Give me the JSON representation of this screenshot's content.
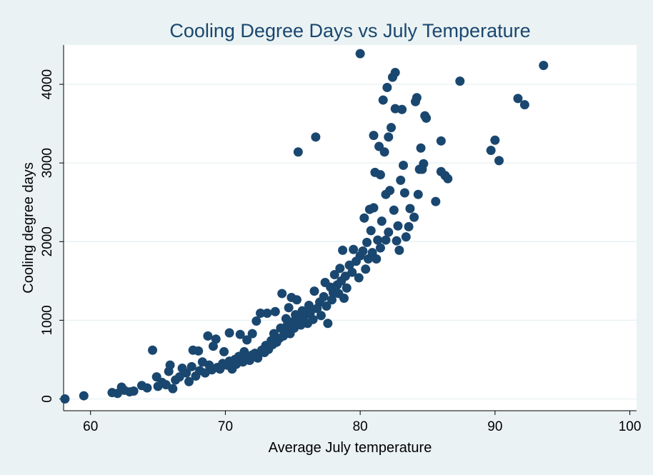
{
  "colors": {
    "background": "#eaf2f3",
    "plot_bg": "#ffffff",
    "marker": "#1a476f",
    "title": "#1a476f",
    "grid": "#eaf2f3"
  },
  "chart_data": {
    "type": "scatter",
    "title": "Cooling Degree Days vs July Temperature",
    "xlabel": "Average July temperature",
    "ylabel": "Cooling degree days",
    "xlim": [
      58,
      100.5
    ],
    "ylim": [
      -150,
      4500
    ],
    "xticks": [
      60,
      70,
      80,
      90,
      100
    ],
    "yticks": [
      0,
      1000,
      2000,
      3000,
      4000
    ],
    "grid": true,
    "legend": "none",
    "points": [
      [
        58.1,
        0
      ],
      [
        59.5,
        40
      ],
      [
        61.6,
        80
      ],
      [
        62.0,
        70
      ],
      [
        62.3,
        150
      ],
      [
        62.5,
        110
      ],
      [
        62.9,
        90
      ],
      [
        63.2,
        100
      ],
      [
        63.8,
        170
      ],
      [
        64.2,
        140
      ],
      [
        64.6,
        620
      ],
      [
        64.9,
        280
      ],
      [
        65.0,
        160
      ],
      [
        65.3,
        210
      ],
      [
        65.6,
        180
      ],
      [
        65.8,
        350
      ],
      [
        65.9,
        430
      ],
      [
        66.1,
        130
      ],
      [
        66.3,
        240
      ],
      [
        66.6,
        280
      ],
      [
        66.8,
        390
      ],
      [
        67.1,
        330
      ],
      [
        67.3,
        220
      ],
      [
        67.5,
        410
      ],
      [
        67.6,
        620
      ],
      [
        67.8,
        290
      ],
      [
        68.0,
        610
      ],
      [
        68.1,
        360
      ],
      [
        68.3,
        470
      ],
      [
        68.5,
        330
      ],
      [
        68.7,
        800
      ],
      [
        68.8,
        430
      ],
      [
        69.0,
        370
      ],
      [
        69.1,
        670
      ],
      [
        69.3,
        760
      ],
      [
        69.4,
        400
      ],
      [
        69.6,
        380
      ],
      [
        69.8,
        450
      ],
      [
        69.9,
        600
      ],
      [
        70.1,
        430
      ],
      [
        70.3,
        480
      ],
      [
        70.3,
        840
      ],
      [
        70.5,
        380
      ],
      [
        70.7,
        500
      ],
      [
        70.8,
        440
      ],
      [
        71.0,
        540
      ],
      [
        71.1,
        820
      ],
      [
        71.3,
        470
      ],
      [
        71.4,
        600
      ],
      [
        71.5,
        520
      ],
      [
        71.6,
        750
      ],
      [
        71.8,
        490
      ],
      [
        72.0,
        560
      ],
      [
        72.0,
        830
      ],
      [
        72.2,
        580
      ],
      [
        72.3,
        990
      ],
      [
        72.4,
        520
      ],
      [
        72.6,
        1090
      ],
      [
        72.7,
        620
      ],
      [
        72.9,
        590
      ],
      [
        73.0,
        680
      ],
      [
        73.1,
        1090
      ],
      [
        73.2,
        630
      ],
      [
        73.4,
        740
      ],
      [
        73.5,
        690
      ],
      [
        73.6,
        830
      ],
      [
        73.7,
        1110
      ],
      [
        73.8,
        720
      ],
      [
        74.0,
        770
      ],
      [
        74.1,
        900
      ],
      [
        74.2,
        1340
      ],
      [
        74.3,
        800
      ],
      [
        74.4,
        880
      ],
      [
        74.5,
        1020
      ],
      [
        74.6,
        940
      ],
      [
        74.7,
        1160
      ],
      [
        74.8,
        830
      ],
      [
        74.9,
        1290
      ],
      [
        75.0,
        980
      ],
      [
        75.1,
        900
      ],
      [
        75.2,
        1070
      ],
      [
        75.3,
        1260
      ],
      [
        75.4,
        3140
      ],
      [
        75.5,
        1010
      ],
      [
        75.6,
        940
      ],
      [
        75.7,
        1120
      ],
      [
        75.8,
        1030
      ],
      [
        76.0,
        1080
      ],
      [
        76.1,
        960
      ],
      [
        76.2,
        1190
      ],
      [
        76.3,
        1100
      ],
      [
        76.5,
        1010
      ],
      [
        76.6,
        1370
      ],
      [
        76.7,
        3330
      ],
      [
        76.8,
        1150
      ],
      [
        77.0,
        1230
      ],
      [
        77.1,
        1060
      ],
      [
        77.3,
        1300
      ],
      [
        77.4,
        1480
      ],
      [
        77.5,
        1180
      ],
      [
        77.6,
        960
      ],
      [
        77.8,
        1420
      ],
      [
        77.9,
        1260
      ],
      [
        78.0,
        1350
      ],
      [
        78.1,
        1580
      ],
      [
        78.3,
        1450
      ],
      [
        78.4,
        1340
      ],
      [
        78.5,
        1660
      ],
      [
        78.6,
        1500
      ],
      [
        78.7,
        1890
      ],
      [
        78.8,
        1280
      ],
      [
        78.9,
        1560
      ],
      [
        79.0,
        1410
      ],
      [
        79.2,
        1700
      ],
      [
        79.4,
        1610
      ],
      [
        79.5,
        1900
      ],
      [
        79.7,
        1750
      ],
      [
        79.9,
        1540
      ],
      [
        80.0,
        1820
      ],
      [
        80.0,
        4390
      ],
      [
        80.2,
        1880
      ],
      [
        80.3,
        2300
      ],
      [
        80.4,
        1650
      ],
      [
        80.5,
        1990
      ],
      [
        80.6,
        1780
      ],
      [
        80.7,
        2410
      ],
      [
        80.8,
        2140
      ],
      [
        80.9,
        1860
      ],
      [
        81.0,
        2430
      ],
      [
        81.0,
        3350
      ],
      [
        81.1,
        2880
      ],
      [
        81.2,
        1780
      ],
      [
        81.3,
        2020
      ],
      [
        81.4,
        3210
      ],
      [
        81.5,
        1920
      ],
      [
        81.5,
        2850
      ],
      [
        81.6,
        2260
      ],
      [
        81.7,
        3800
      ],
      [
        81.8,
        3140
      ],
      [
        81.9,
        2600
      ],
      [
        81.9,
        2020
      ],
      [
        82.0,
        3960
      ],
      [
        82.1,
        2120
      ],
      [
        82.1,
        3330
      ],
      [
        82.2,
        2650
      ],
      [
        82.3,
        3450
      ],
      [
        82.4,
        4090
      ],
      [
        82.5,
        2400
      ],
      [
        82.6,
        4150
      ],
      [
        82.6,
        3690
      ],
      [
        82.7,
        2010
      ],
      [
        82.8,
        2200
      ],
      [
        82.9,
        1890
      ],
      [
        83.0,
        2780
      ],
      [
        83.1,
        3680
      ],
      [
        83.2,
        2970
      ],
      [
        83.3,
        2620
      ],
      [
        83.4,
        2060
      ],
      [
        83.6,
        2190
      ],
      [
        83.7,
        2420
      ],
      [
        84.0,
        2310
      ],
      [
        84.1,
        3780
      ],
      [
        84.2,
        3830
      ],
      [
        84.3,
        2600
      ],
      [
        84.4,
        2920
      ],
      [
        84.5,
        3190
      ],
      [
        84.6,
        2920
      ],
      [
        84.7,
        2990
      ],
      [
        84.8,
        3600
      ],
      [
        84.9,
        3570
      ],
      [
        85.6,
        2510
      ],
      [
        86.0,
        3280
      ],
      [
        86.0,
        2890
      ],
      [
        86.3,
        2840
      ],
      [
        86.5,
        2800
      ],
      [
        87.4,
        4040
      ],
      [
        89.7,
        3160
      ],
      [
        90.0,
        3290
      ],
      [
        90.3,
        3030
      ],
      [
        91.7,
        3820
      ],
      [
        92.2,
        3740
      ],
      [
        93.6,
        4240
      ]
    ]
  }
}
